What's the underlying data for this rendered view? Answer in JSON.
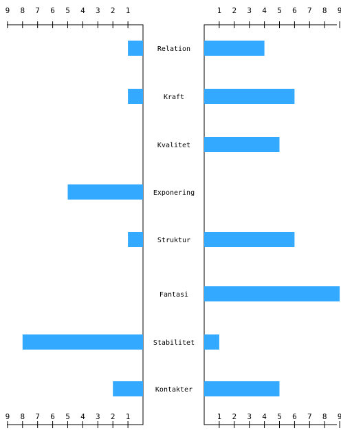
{
  "chart_data": {
    "type": "bar",
    "layout": "butterfly",
    "orientation": "horizontal",
    "categories": [
      "Relation",
      "Kraft",
      "Kvalitet",
      "Exponering",
      "Struktur",
      "Fantasi",
      "Stabilitet",
      "Kontakter"
    ],
    "series": [
      {
        "side": "left",
        "values": [
          1,
          1,
          0,
          5,
          1,
          0,
          8,
          2
        ]
      },
      {
        "side": "right",
        "values": [
          4,
          6,
          5,
          0,
          6,
          9,
          1,
          5
        ]
      }
    ],
    "xlim": [
      0,
      9
    ],
    "ticks": [
      1,
      2,
      3,
      4,
      5,
      6,
      7,
      8,
      9
    ],
    "tick_labels": [
      "1",
      "2",
      "3",
      "4",
      "5",
      "6",
      "7",
      "8",
      "9"
    ],
    "bar_color": "#33aaff",
    "axis_color": "#000000",
    "grid": false,
    "title": "",
    "xlabel": "",
    "ylabel": ""
  }
}
